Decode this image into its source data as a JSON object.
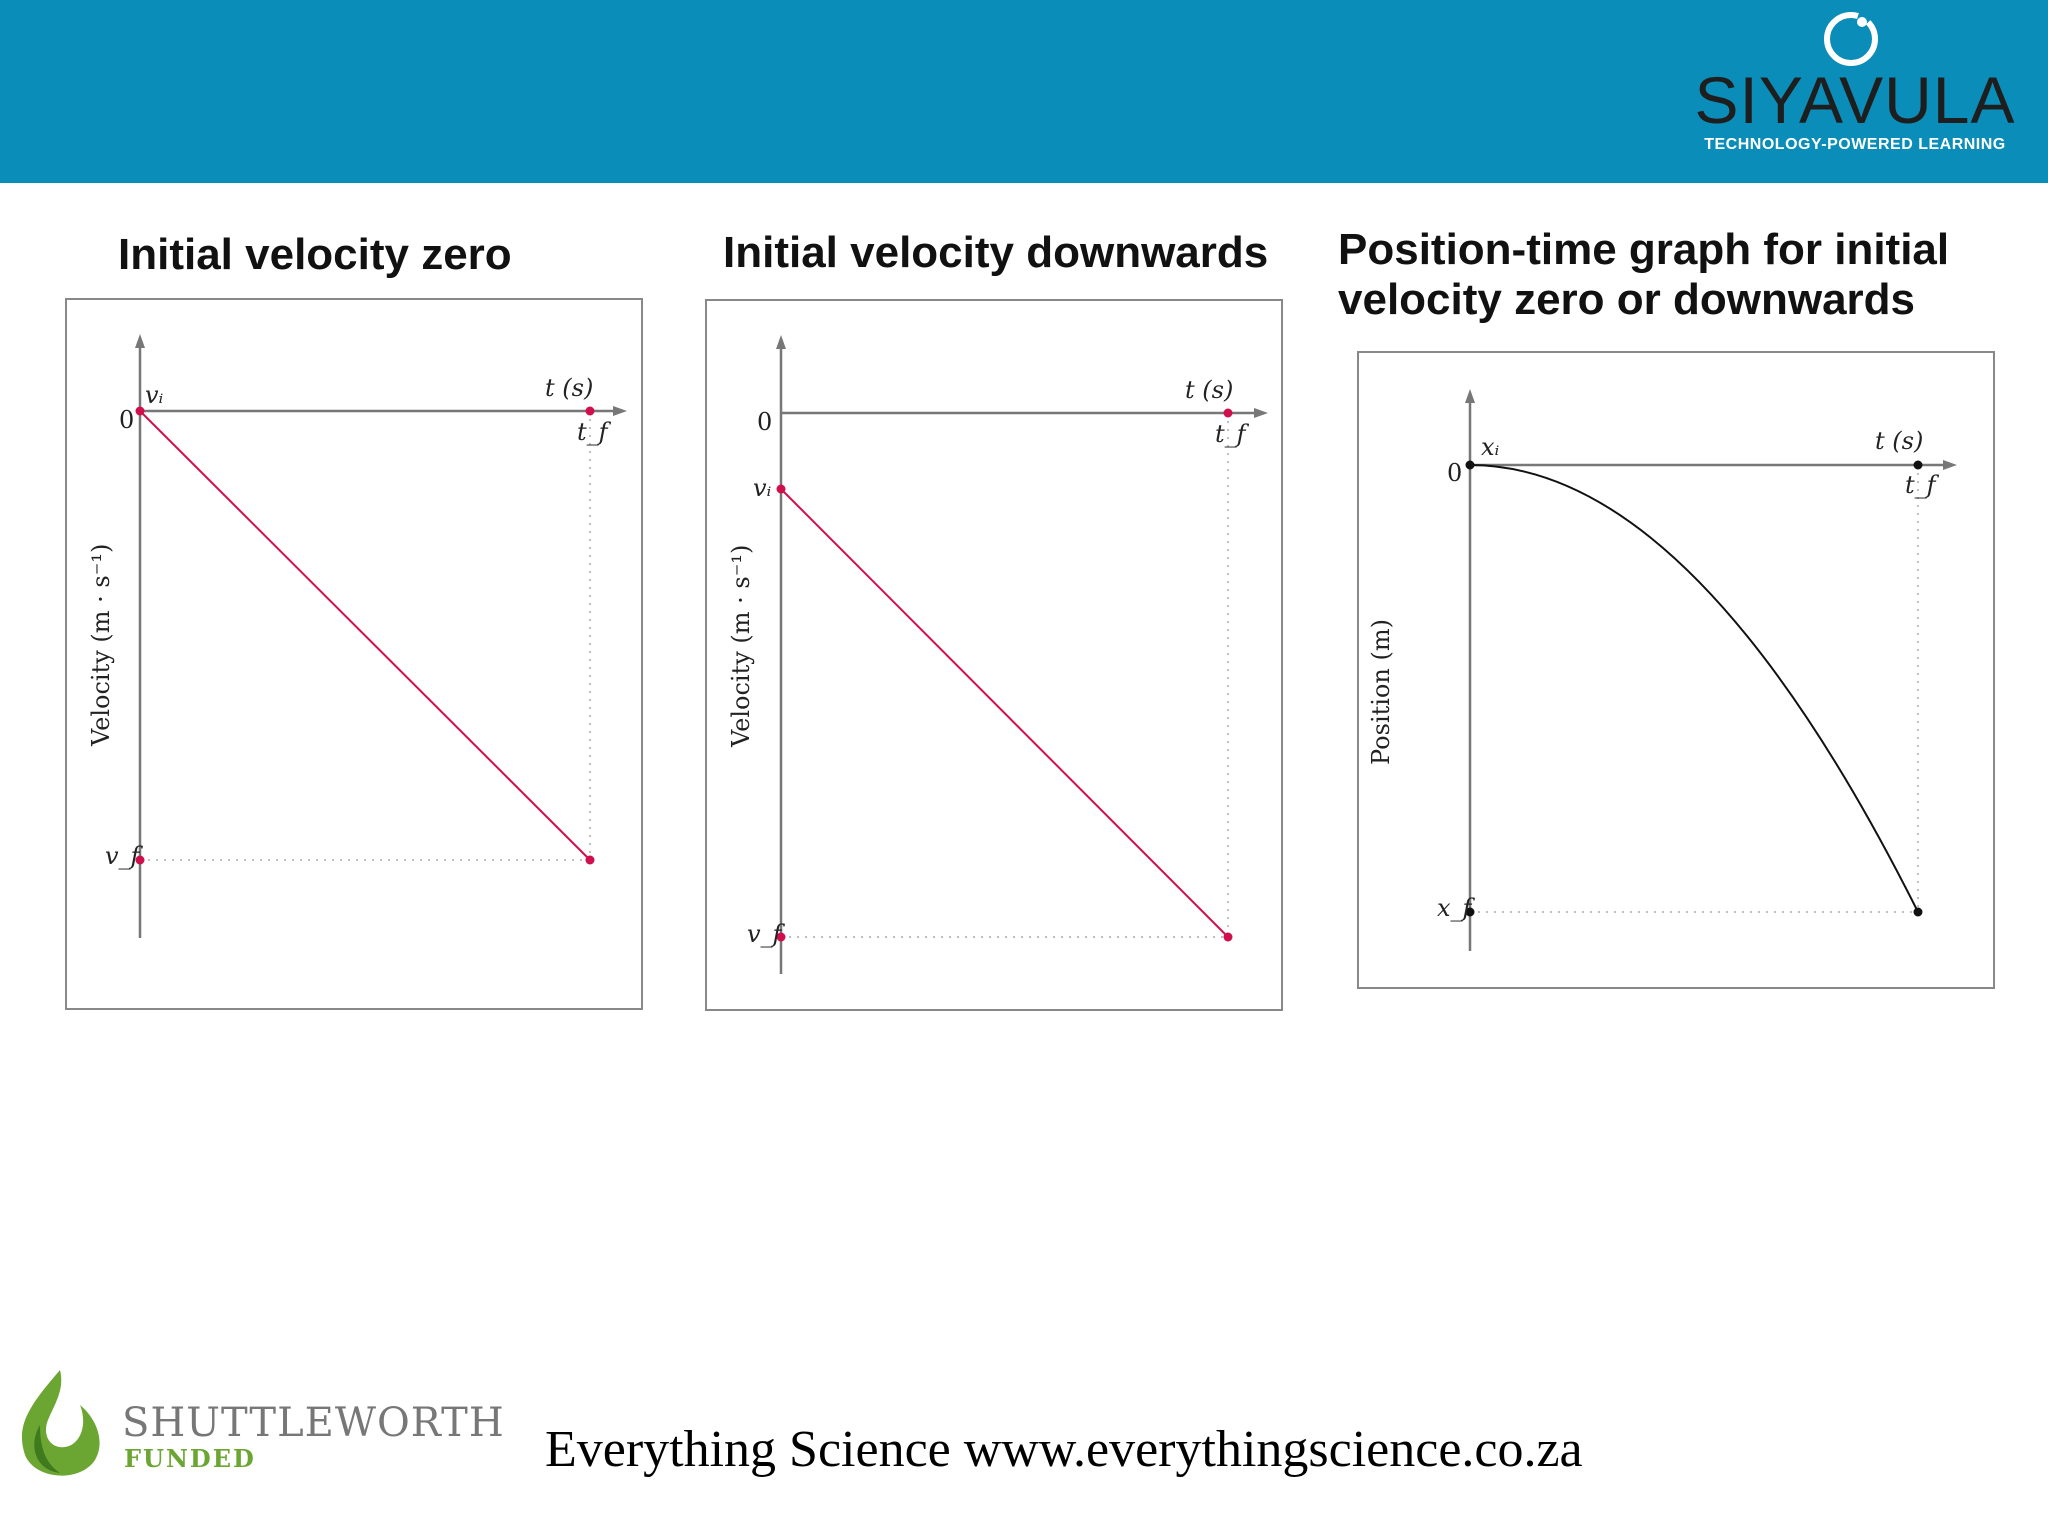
{
  "header": {
    "logo_name": "SIYAVULA",
    "logo_tagline": "TECHNOLOGY-POWERED LEARNING",
    "background_color": "#0a8db8"
  },
  "panels": [
    {
      "title": "Initial velocity zero",
      "y_axis_label": "Velocity (m · s⁻¹)",
      "x_axis_label": "t (s)",
      "origin_label": "0",
      "vi_label": "vᵢ",
      "vf_label": "v_f",
      "tf_label": "t_f",
      "line_color": "#d0104c"
    },
    {
      "title": "Initial velocity downwards",
      "y_axis_label": "Velocity (m · s⁻¹)",
      "x_axis_label": "t (s)",
      "origin_label": "0",
      "vi_label": "vᵢ",
      "vf_label": "v_f",
      "tf_label": "t_f",
      "line_color": "#d0104c"
    },
    {
      "title_line1": "Position-time graph for initial",
      "title_line2": "velocity zero or downwards",
      "y_axis_label": "Position (m)",
      "x_axis_label": "t (s)",
      "origin_label": "0",
      "xi_label": "xᵢ",
      "xf_label": "x_f",
      "tf_label": "t_f",
      "line_color": "#111111"
    }
  ],
  "footer": {
    "website_text": "Everything Science www.everythingscience.co.za",
    "sponsor_name": "SHUTTLEWORTH",
    "sponsor_sub": "FUNDED"
  }
}
